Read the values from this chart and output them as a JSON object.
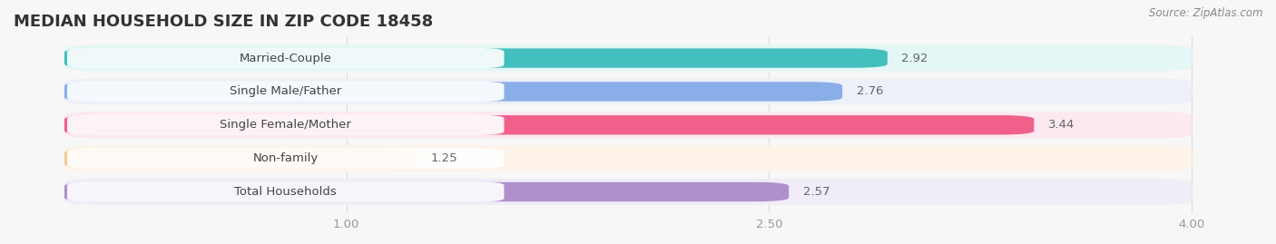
{
  "title": "MEDIAN HOUSEHOLD SIZE IN ZIP CODE 18458",
  "source": "Source: ZipAtlas.com",
  "categories": [
    "Married-Couple",
    "Single Male/Father",
    "Single Female/Mother",
    "Non-family",
    "Total Households"
  ],
  "values": [
    2.92,
    2.76,
    3.44,
    1.25,
    2.57
  ],
  "bar_colors": [
    "#44bfbf",
    "#8aaee8",
    "#f0608a",
    "#f5c898",
    "#b090cc"
  ],
  "bar_bg_colors": [
    "#e4f6f6",
    "#edf0f8",
    "#fce8f0",
    "#fdf3e8",
    "#f0ecf8"
  ],
  "xmin": 0.0,
  "xmax": 4.0,
  "xticks": [
    1.0,
    2.5,
    4.0
  ],
  "title_fontsize": 13,
  "label_fontsize": 9.5,
  "value_fontsize": 9.5,
  "background_color": "#f7f7f7"
}
